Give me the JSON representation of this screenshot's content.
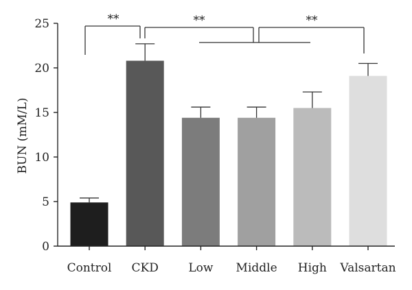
{
  "chart_data": {
    "type": "bar",
    "ylabel": "BUN (mM/L)",
    "ylim": [
      0,
      25
    ],
    "yticks": [
      "0",
      "5",
      "10",
      "15",
      "20",
      "25"
    ],
    "categories": [
      "Control",
      "CKD",
      "Low",
      "Middle",
      "High",
      "Valsartan"
    ],
    "values": [
      4.9,
      20.8,
      14.4,
      14.4,
      15.5,
      19.1
    ],
    "error_upper": [
      5.4,
      22.7,
      15.6,
      15.6,
      17.3,
      20.5
    ],
    "bar_colors": [
      "#1e1e1e",
      "#585858",
      "#7c7c7c",
      "#a0a0a0",
      "#bbbbbb",
      "#dedede"
    ],
    "significance": [
      {
        "label": "**",
        "between": [
          "Control",
          "CKD"
        ]
      },
      {
        "label": "**",
        "between": [
          "CKD",
          "Low–High"
        ]
      },
      {
        "label": "**",
        "between": [
          "Low–High",
          "Valsartan"
        ]
      }
    ]
  }
}
